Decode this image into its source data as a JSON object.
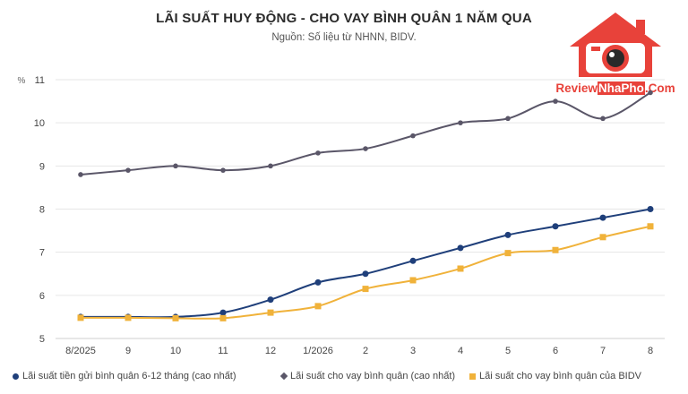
{
  "title": "LÃI SUẤT HUY ĐỘNG - CHO VAY BÌNH QUÂN 1 NĂM QUA",
  "subtitle": "Nguồn: Số liệu từ NHNN, BIDV.",
  "logo": {
    "prefix": "Review",
    "highlight": "NhaPho",
    "suffix": ".Com",
    "color": "#e8423a"
  },
  "chart_data": {
    "type": "line",
    "ylabel": "%",
    "ylim": [
      5,
      11
    ],
    "yticks": [
      5,
      6,
      7,
      8,
      9,
      10,
      11
    ],
    "grid": true,
    "legend_position": "bottom",
    "categories": [
      "8/2025",
      "9",
      "10",
      "11",
      "12",
      "1/2026",
      "2",
      "3",
      "4",
      "5",
      "6",
      "7",
      "8"
    ],
    "series": [
      {
        "name": "Lãi suất tiền gửi bình quân 6-12 tháng (cao nhất)",
        "color": "#1f3f7a",
        "marker": "circle",
        "values": [
          5.5,
          5.5,
          5.5,
          5.6,
          5.9,
          6.3,
          6.5,
          6.8,
          7.1,
          7.4,
          7.6,
          7.8,
          8.0
        ]
      },
      {
        "name": "Lãi suất cho vay bình quân (cao nhất)",
        "color": "#5a5668",
        "marker": "diamond",
        "values": [
          8.8,
          8.9,
          9.0,
          8.9,
          9.0,
          9.3,
          9.4,
          9.7,
          10.0,
          10.1,
          10.5,
          10.1,
          10.7
        ]
      },
      {
        "name": "Lãi suất cho vay bình quân của BIDV",
        "color": "#f0b23a",
        "marker": "square",
        "values": [
          5.48,
          5.48,
          5.47,
          5.47,
          5.6,
          5.75,
          6.15,
          6.35,
          6.62,
          6.98,
          7.05,
          7.35,
          7.6
        ]
      }
    ]
  }
}
